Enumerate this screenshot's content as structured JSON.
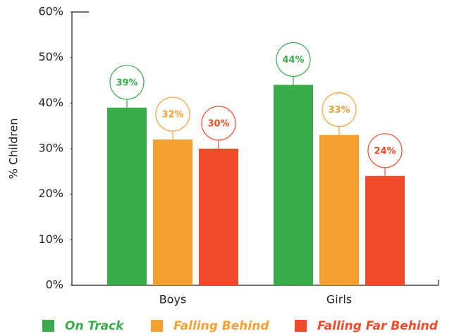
{
  "chart_data": {
    "type": "bar",
    "y_label": "% Children",
    "categories": [
      "Boys",
      "Girls"
    ],
    "series": [
      {
        "name": "On Track",
        "color": "#3aab4a",
        "values": [
          39,
          44
        ],
        "value_labels": [
          "39%",
          "44%"
        ]
      },
      {
        "name": "Falling Behind",
        "color": "#f5a033",
        "values": [
          32,
          33
        ],
        "value_labels": [
          "32%",
          "33%"
        ]
      },
      {
        "name": "Falling Far Behind",
        "color": "#ef4b2a",
        "values": [
          30,
          24
        ],
        "value_labels": [
          "30%",
          "24%"
        ]
      }
    ],
    "ylim": [
      0,
      60
    ],
    "yticks": [
      {
        "value": 0,
        "label": "0%"
      },
      {
        "value": 10,
        "label": "10%"
      },
      {
        "value": 20,
        "label": "20%"
      },
      {
        "value": 30,
        "label": "30%"
      },
      {
        "value": 40,
        "label": "40%"
      },
      {
        "value": 50,
        "label": "50%"
      },
      {
        "value": 60,
        "label": "60%"
      }
    ],
    "legend": "bottom"
  }
}
